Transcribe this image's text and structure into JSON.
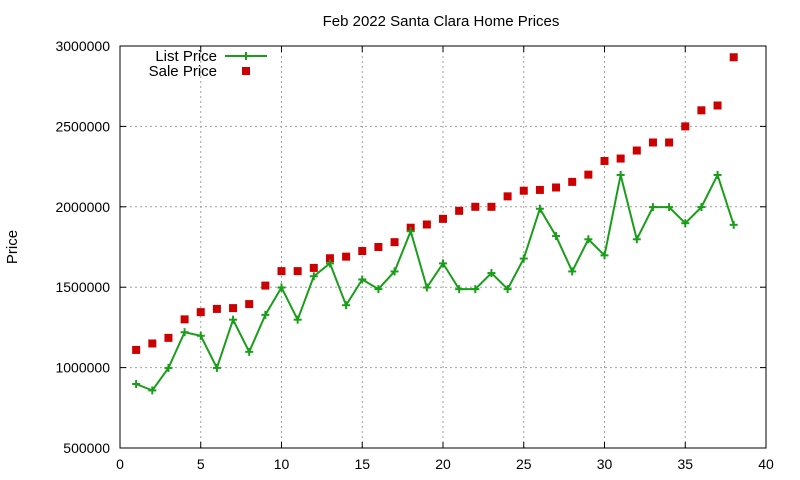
{
  "chart_data": {
    "type": "line",
    "title": "Feb 2022 Santa Clara Home Prices",
    "xlabel": "",
    "ylabel": "Price",
    "xlim": [
      0,
      40
    ],
    "ylim": [
      500000,
      3000000
    ],
    "xticks": [
      0,
      5,
      10,
      15,
      20,
      25,
      30,
      35,
      40
    ],
    "yticks": [
      500000,
      1000000,
      1500000,
      2000000,
      2500000,
      3000000
    ],
    "grid": true,
    "legend_position": "top-left",
    "x": [
      1,
      2,
      3,
      4,
      5,
      6,
      7,
      8,
      9,
      10,
      11,
      12,
      13,
      14,
      15,
      16,
      17,
      18,
      19,
      20,
      21,
      22,
      23,
      24,
      25,
      26,
      27,
      28,
      29,
      30,
      31,
      32,
      33,
      34,
      35,
      36,
      37,
      38
    ],
    "series": [
      {
        "name": "List Price",
        "style": "line-with-plus-markers",
        "color": "#1a9e1a",
        "values": [
          898000,
          858000,
          998000,
          1220000,
          1198000,
          998000,
          1298000,
          1098000,
          1328000,
          1498000,
          1298000,
          1568000,
          1648000,
          1388000,
          1548000,
          1488000,
          1598000,
          1848000,
          1498000,
          1648000,
          1488000,
          1488000,
          1588000,
          1488000,
          1678000,
          1988000,
          1818000,
          1598000,
          1798000,
          1698000,
          2198000,
          1798000,
          1998000,
          1998000,
          1898000,
          1998000,
          2198000,
          1888000
        ]
      },
      {
        "name": "Sale Price",
        "style": "square-markers",
        "color": "#cc0000",
        "values": [
          1110000,
          1150000,
          1185000,
          1300000,
          1345000,
          1365000,
          1370000,
          1395000,
          1510000,
          1600000,
          1600000,
          1620000,
          1680000,
          1690000,
          1725000,
          1750000,
          1780000,
          1870000,
          1890000,
          1925000,
          1975000,
          2000000,
          2000000,
          2065000,
          2100000,
          2105000,
          2120000,
          2155000,
          2200000,
          2285000,
          2300000,
          2350000,
          2400000,
          2400000,
          2500000,
          2600000,
          2630000,
          2930000
        ]
      }
    ]
  }
}
